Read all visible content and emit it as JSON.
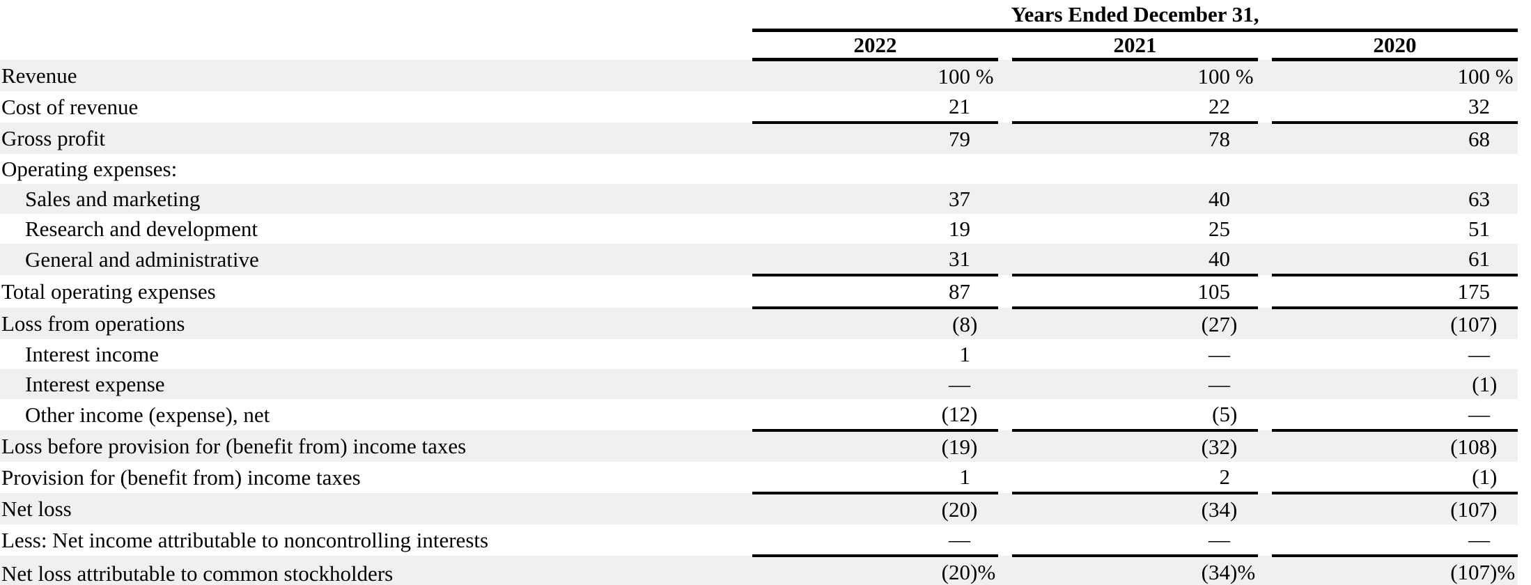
{
  "table": {
    "header": {
      "title": "Years Ended December 31,",
      "years": [
        "2022",
        "2021",
        "2020"
      ]
    },
    "rows": [
      {
        "label": "Revenue",
        "indent": 0,
        "shaded": true,
        "rule_below": "none",
        "values": [
          "100 %",
          "100 %",
          "100 %"
        ]
      },
      {
        "label": "Cost of revenue",
        "indent": 0,
        "shaded": false,
        "rule_below": "single",
        "values": [
          "21",
          "22",
          "32"
        ]
      },
      {
        "label": "Gross profit",
        "indent": 0,
        "shaded": true,
        "rule_below": "none",
        "values": [
          "79",
          "78",
          "68"
        ]
      },
      {
        "label": "Operating expenses:",
        "indent": 0,
        "shaded": false,
        "rule_below": "none",
        "values": [
          "",
          "",
          ""
        ]
      },
      {
        "label": "Sales and marketing",
        "indent": 1,
        "shaded": true,
        "rule_below": "none",
        "values": [
          "37",
          "40",
          "63"
        ]
      },
      {
        "label": "Research and development",
        "indent": 1,
        "shaded": false,
        "rule_below": "none",
        "values": [
          "19",
          "25",
          "51"
        ]
      },
      {
        "label": "General and administrative",
        "indent": 1,
        "shaded": true,
        "rule_below": "single",
        "values": [
          "31",
          "40",
          "61"
        ]
      },
      {
        "label": "Total operating expenses",
        "indent": 0,
        "shaded": false,
        "rule_below": "single",
        "values": [
          "87",
          "105",
          "175"
        ]
      },
      {
        "label": "Loss from operations",
        "indent": 0,
        "shaded": true,
        "rule_below": "none",
        "values": [
          "(8)",
          "(27)",
          "(107)"
        ]
      },
      {
        "label": "Interest income",
        "indent": 1,
        "shaded": false,
        "rule_below": "none",
        "values": [
          "1",
          "—",
          "—"
        ]
      },
      {
        "label": "Interest expense",
        "indent": 1,
        "shaded": true,
        "rule_below": "none",
        "values": [
          "—",
          "—",
          "(1)"
        ]
      },
      {
        "label": "Other income (expense), net",
        "indent": 1,
        "shaded": false,
        "rule_below": "single",
        "values": [
          "(12)",
          "(5)",
          "—"
        ]
      },
      {
        "label": "Loss before provision for (benefit from) income taxes",
        "indent": 0,
        "shaded": true,
        "rule_below": "none",
        "values": [
          "(19)",
          "(32)",
          "(108)"
        ]
      },
      {
        "label": "Provision for (benefit from) income taxes",
        "indent": 0,
        "shaded": false,
        "rule_below": "single",
        "values": [
          "1",
          "2",
          "(1)"
        ]
      },
      {
        "label": "Net loss",
        "indent": 0,
        "shaded": true,
        "rule_below": "none",
        "values": [
          "(20)",
          "(34)",
          "(107)"
        ]
      },
      {
        "label": "Less: Net income attributable to noncontrolling interests",
        "indent": 0,
        "shaded": false,
        "rule_below": "single",
        "values": [
          "—",
          "—",
          "—"
        ]
      },
      {
        "label": "Net loss attributable to common stockholders",
        "indent": 0,
        "shaded": true,
        "rule_below": "double",
        "values": [
          "(20)%",
          "(34)%",
          "(107)%"
        ]
      }
    ],
    "colors": {
      "stripe": "#f0f0f0",
      "rule": "#000000",
      "text": "#000000",
      "background": "#ffffff"
    }
  }
}
